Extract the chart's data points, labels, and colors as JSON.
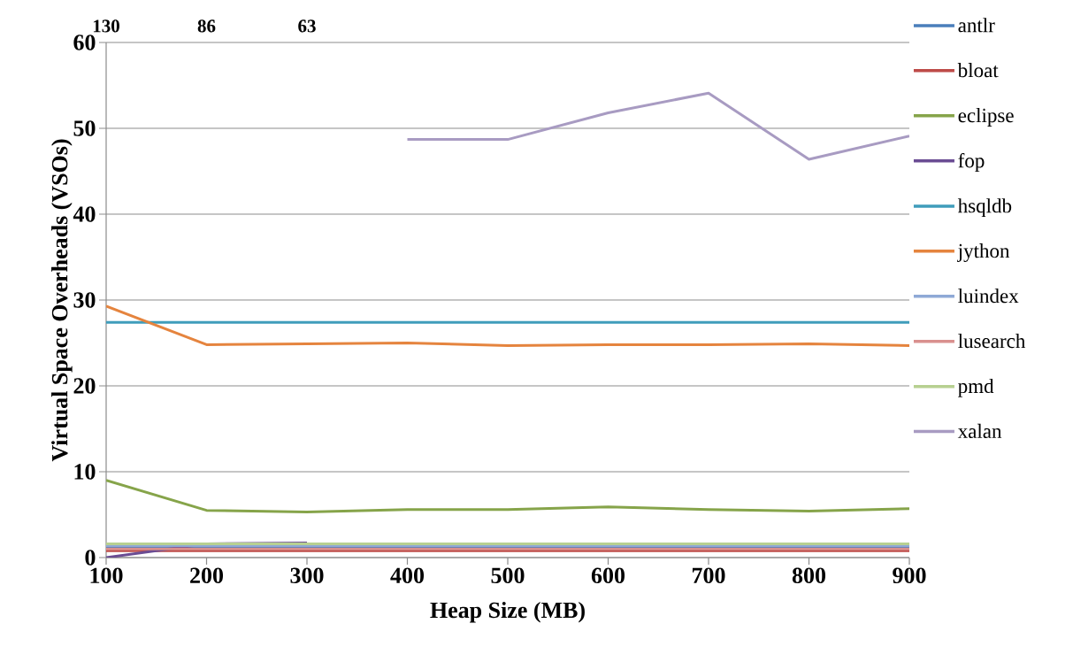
{
  "chart_data": {
    "type": "line",
    "xlabel": "Heap Size (MB)",
    "ylabel": "Virtual Space Overheads (VSOs)",
    "x": [
      100,
      200,
      300,
      400,
      500,
      600,
      700,
      800,
      900
    ],
    "xlim": [
      100,
      900
    ],
    "xticks": [
      100,
      200,
      300,
      400,
      500,
      600,
      700,
      800,
      900
    ],
    "ylim": [
      0,
      60
    ],
    "yticks": [
      0,
      10,
      20,
      30,
      40,
      50,
      60
    ],
    "grid": "y",
    "legend": "right",
    "marker": "none",
    "line_style": "solid",
    "series": [
      {
        "name": "antlr",
        "color": "#4a7ebb",
        "values": [
          1.2,
          1.2,
          1.2,
          1.2,
          1.2,
          1.2,
          1.2,
          1.2,
          1.2
        ]
      },
      {
        "name": "bloat",
        "color": "#be4b48",
        "values": [
          0.8,
          0.8,
          0.8,
          0.8,
          0.8,
          0.8,
          0.8,
          0.8,
          0.8
        ]
      },
      {
        "name": "eclipse",
        "color": "#86a44a",
        "values": [
          9.0,
          5.5,
          5.3,
          5.6,
          5.6,
          5.9,
          5.6,
          5.4,
          5.7
        ]
      },
      {
        "name": "fop",
        "color": "#6a4c93",
        "values": [
          0,
          1.6,
          1.7,
          null,
          null,
          null,
          null,
          null,
          null
        ]
      },
      {
        "name": "hsqldb",
        "color": "#3f9dbb",
        "values": [
          27.4,
          27.4,
          27.4,
          27.4,
          27.4,
          27.4,
          27.4,
          27.4,
          27.4
        ]
      },
      {
        "name": "jython",
        "color": "#e5843e",
        "values": [
          29.3,
          24.8,
          24.9,
          25.0,
          24.7,
          24.8,
          24.8,
          24.9,
          24.7
        ]
      },
      {
        "name": "luindex",
        "color": "#8fa9d6",
        "values": [
          1.4,
          1.4,
          1.4,
          1.4,
          1.4,
          1.4,
          1.4,
          1.4,
          1.4
        ]
      },
      {
        "name": "lusearch",
        "color": "#d9908e",
        "values": [
          1.0,
          1.0,
          1.0,
          1.0,
          1.0,
          1.0,
          1.0,
          1.0,
          1.0
        ]
      },
      {
        "name": "pmd",
        "color": "#b7d091",
        "values": [
          1.6,
          1.6,
          1.6,
          1.6,
          1.6,
          1.6,
          1.6,
          1.6,
          1.6
        ]
      },
      {
        "name": "xalan",
        "color": "#a89bc2",
        "values": [
          null,
          null,
          null,
          48.7,
          48.7,
          51.8,
          54.1,
          46.4,
          49.1
        ]
      }
    ],
    "annotations": [
      "130",
      "86",
      "63"
    ]
  }
}
